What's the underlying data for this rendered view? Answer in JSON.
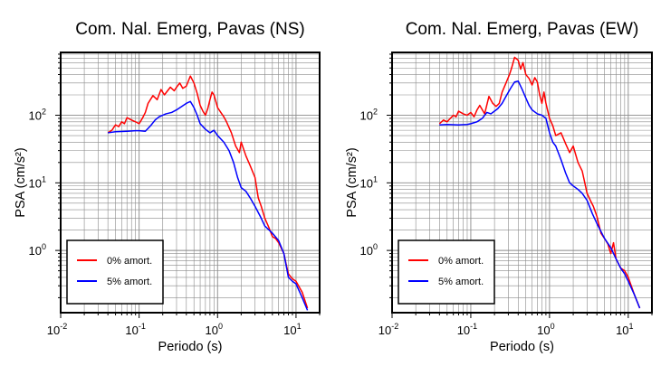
{
  "chart_data": [
    {
      "type": "line",
      "title": "Com. Nal. Emerg, Pavas (NS)",
      "xlabel": "Periodo (s)",
      "ylabel": "PSA (cm/s²)",
      "xscale": "log",
      "yscale": "log",
      "xlim": [
        0.01,
        20
      ],
      "ylim": [
        0.12,
        850
      ],
      "x_ticks": [
        "10⁻²",
        "10⁻¹",
        "10⁰",
        "10¹"
      ],
      "y_ticks": [
        "10⁰",
        "10¹",
        "10²"
      ],
      "grid": true,
      "legend_position": "bottom-left",
      "series": [
        {
          "name": "0% amort.",
          "color": "#ff0000",
          "points": [
            [
              0.04,
              55
            ],
            [
              0.045,
              60
            ],
            [
              0.05,
              72
            ],
            [
              0.055,
              68
            ],
            [
              0.06,
              80
            ],
            [
              0.065,
              75
            ],
            [
              0.07,
              92
            ],
            [
              0.08,
              85
            ],
            [
              0.09,
              80
            ],
            [
              0.1,
              75
            ],
            [
              0.11,
              90
            ],
            [
              0.12,
              110
            ],
            [
              0.13,
              150
            ],
            [
              0.15,
              195
            ],
            [
              0.17,
              170
            ],
            [
              0.19,
              240
            ],
            [
              0.21,
              200
            ],
            [
              0.25,
              260
            ],
            [
              0.28,
              230
            ],
            [
              0.3,
              260
            ],
            [
              0.33,
              300
            ],
            [
              0.36,
              250
            ],
            [
              0.4,
              270
            ],
            [
              0.45,
              380
            ],
            [
              0.5,
              300
            ],
            [
              0.55,
              210
            ],
            [
              0.6,
              140
            ],
            [
              0.65,
              115
            ],
            [
              0.7,
              100
            ],
            [
              0.75,
              125
            ],
            [
              0.8,
              170
            ],
            [
              0.85,
              220
            ],
            [
              0.9,
              200
            ],
            [
              1.0,
              130
            ],
            [
              1.1,
              110
            ],
            [
              1.2,
              95
            ],
            [
              1.3,
              80
            ],
            [
              1.5,
              55
            ],
            [
              1.7,
              35
            ],
            [
              1.9,
              28
            ],
            [
              2.0,
              40
            ],
            [
              2.3,
              25
            ],
            [
              2.6,
              18
            ],
            [
              3.0,
              12
            ],
            [
              3.3,
              6
            ],
            [
              3.6,
              4.5
            ],
            [
              4.0,
              3.0
            ],
            [
              4.5,
              2.2
            ],
            [
              5.0,
              1.6
            ],
            [
              5.5,
              1.5
            ],
            [
              6.0,
              1.3
            ],
            [
              7.0,
              0.9
            ],
            [
              7.5,
              0.62
            ],
            [
              8.0,
              0.45
            ],
            [
              9.0,
              0.38
            ],
            [
              10,
              0.35
            ],
            [
              12,
              0.24
            ],
            [
              14,
              0.14
            ]
          ]
        },
        {
          "name": "5% amort.",
          "color": "#0000ff",
          "points": [
            [
              0.04,
              55
            ],
            [
              0.05,
              57
            ],
            [
              0.07,
              58
            ],
            [
              0.09,
              59
            ],
            [
              0.1,
              59
            ],
            [
              0.12,
              58
            ],
            [
              0.14,
              70
            ],
            [
              0.16,
              85
            ],
            [
              0.18,
              95
            ],
            [
              0.22,
              105
            ],
            [
              0.26,
              110
            ],
            [
              0.3,
              120
            ],
            [
              0.35,
              135
            ],
            [
              0.4,
              150
            ],
            [
              0.45,
              160
            ],
            [
              0.5,
              130
            ],
            [
              0.55,
              100
            ],
            [
              0.6,
              75
            ],
            [
              0.7,
              62
            ],
            [
              0.8,
              55
            ],
            [
              0.9,
              60
            ],
            [
              1.0,
              50
            ],
            [
              1.2,
              40
            ],
            [
              1.4,
              30
            ],
            [
              1.6,
              20
            ],
            [
              1.8,
              12
            ],
            [
              2.0,
              8.5
            ],
            [
              2.3,
              7.5
            ],
            [
              2.6,
              6
            ],
            [
              3.0,
              4.5
            ],
            [
              3.5,
              3.2
            ],
            [
              4.0,
              2.3
            ],
            [
              5.0,
              1.8
            ],
            [
              6.0,
              1.4
            ],
            [
              7.0,
              0.9
            ],
            [
              8.0,
              0.4
            ],
            [
              9.0,
              0.35
            ],
            [
              10,
              0.32
            ],
            [
              12,
              0.2
            ],
            [
              14,
              0.13
            ]
          ]
        }
      ]
    },
    {
      "type": "line",
      "title": "Com. Nal. Emerg, Pavas (EW)",
      "xlabel": "Periodo (s)",
      "ylabel": "PSA (cm/s²)",
      "xscale": "log",
      "yscale": "log",
      "xlim": [
        0.01,
        20
      ],
      "ylim": [
        0.12,
        850
      ],
      "x_ticks": [
        "10⁻²",
        "10⁻¹",
        "10⁰",
        "10¹"
      ],
      "y_ticks": [
        "10⁰",
        "10¹",
        "10²"
      ],
      "grid": true,
      "legend_position": "bottom-left",
      "series": [
        {
          "name": "0% amort.",
          "color": "#ff0000",
          "points": [
            [
              0.04,
              75
            ],
            [
              0.045,
              85
            ],
            [
              0.05,
              80
            ],
            [
              0.06,
              100
            ],
            [
              0.065,
              95
            ],
            [
              0.07,
              115
            ],
            [
              0.08,
              105
            ],
            [
              0.09,
              100
            ],
            [
              0.1,
              110
            ],
            [
              0.11,
              95
            ],
            [
              0.12,
              120
            ],
            [
              0.13,
              140
            ],
            [
              0.15,
              105
            ],
            [
              0.17,
              190
            ],
            [
              0.19,
              150
            ],
            [
              0.21,
              135
            ],
            [
              0.23,
              150
            ],
            [
              0.25,
              220
            ],
            [
              0.28,
              300
            ],
            [
              0.31,
              400
            ],
            [
              0.33,
              500
            ],
            [
              0.36,
              720
            ],
            [
              0.4,
              650
            ],
            [
              0.43,
              480
            ],
            [
              0.46,
              600
            ],
            [
              0.5,
              400
            ],
            [
              0.55,
              350
            ],
            [
              0.6,
              280
            ],
            [
              0.65,
              360
            ],
            [
              0.7,
              310
            ],
            [
              0.75,
              200
            ],
            [
              0.8,
              150
            ],
            [
              0.85,
              220
            ],
            [
              0.9,
              150
            ],
            [
              1.0,
              90
            ],
            [
              1.1,
              70
            ],
            [
              1.2,
              50
            ],
            [
              1.4,
              55
            ],
            [
              1.6,
              38
            ],
            [
              1.8,
              28
            ],
            [
              2.0,
              35
            ],
            [
              2.3,
              20
            ],
            [
              2.6,
              15
            ],
            [
              3.0,
              7
            ],
            [
              3.3,
              5.5
            ],
            [
              3.6,
              4.5
            ],
            [
              4.0,
              3.2
            ],
            [
              4.5,
              1.8
            ],
            [
              5.0,
              1.5
            ],
            [
              5.5,
              1.25
            ],
            [
              6.0,
              0.9
            ],
            [
              6.5,
              1.3
            ],
            [
              7.0,
              0.75
            ],
            [
              8.0,
              0.55
            ],
            [
              9.0,
              0.5
            ],
            [
              10,
              0.4
            ],
            [
              12,
              0.22
            ],
            [
              14,
              0.14
            ]
          ]
        },
        {
          "name": "5% amort.",
          "color": "#0000ff",
          "points": [
            [
              0.04,
              72
            ],
            [
              0.05,
              73
            ],
            [
              0.07,
              72
            ],
            [
              0.09,
              73
            ],
            [
              0.1,
              75
            ],
            [
              0.12,
              80
            ],
            [
              0.14,
              90
            ],
            [
              0.16,
              110
            ],
            [
              0.18,
              105
            ],
            [
              0.2,
              115
            ],
            [
              0.22,
              125
            ],
            [
              0.25,
              150
            ],
            [
              0.28,
              190
            ],
            [
              0.32,
              250
            ],
            [
              0.36,
              310
            ],
            [
              0.4,
              320
            ],
            [
              0.45,
              240
            ],
            [
              0.5,
              180
            ],
            [
              0.55,
              140
            ],
            [
              0.6,
              120
            ],
            [
              0.7,
              105
            ],
            [
              0.8,
              100
            ],
            [
              0.9,
              90
            ],
            [
              1.0,
              55
            ],
            [
              1.1,
              40
            ],
            [
              1.2,
              35
            ],
            [
              1.4,
              22
            ],
            [
              1.6,
              14
            ],
            [
              1.8,
              10
            ],
            [
              2.0,
              9
            ],
            [
              2.3,
              8
            ],
            [
              2.6,
              7
            ],
            [
              3.0,
              5.5
            ],
            [
              3.5,
              3.5
            ],
            [
              4.0,
              2.5
            ],
            [
              5.0,
              1.5
            ],
            [
              6.0,
              1.1
            ],
            [
              7.0,
              0.75
            ],
            [
              8.0,
              0.55
            ],
            [
              9.0,
              0.45
            ],
            [
              10,
              0.35
            ],
            [
              12,
              0.22
            ],
            [
              14,
              0.14
            ]
          ]
        }
      ]
    }
  ]
}
